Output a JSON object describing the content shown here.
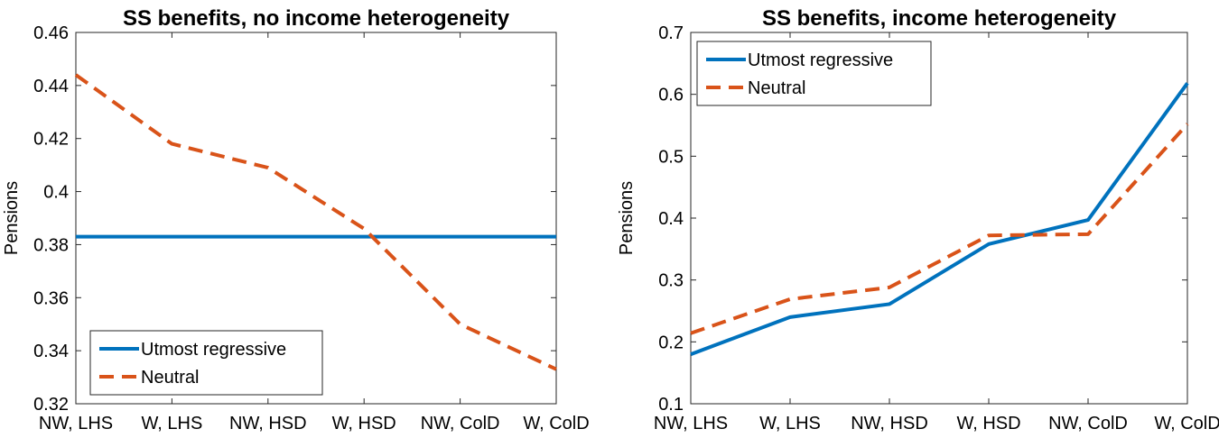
{
  "chart_data": [
    {
      "type": "line",
      "title": "SS benefits, no income heterogeneity",
      "xlabel": "",
      "ylabel": "Pensions",
      "categories": [
        "NW, LHS",
        "W, LHS",
        "NW, HSD",
        "W, HSD",
        "NW, ColD",
        "W, ColD"
      ],
      "ylim": [
        0.32,
        0.46
      ],
      "yticks": [
        0.32,
        0.34,
        0.36,
        0.38,
        0.4,
        0.42,
        0.44,
        0.46
      ],
      "ytick_labels": [
        "0.32",
        "0.34",
        "0.36",
        "0.38",
        "0.4",
        "0.42",
        "0.44",
        "0.46"
      ],
      "grid": false,
      "legend_position": "bottom-left",
      "series": [
        {
          "name": "Utmost regressive",
          "style": "solid",
          "color": "#0072BD",
          "values": [
            0.383,
            0.383,
            0.383,
            0.383,
            0.383,
            0.383
          ]
        },
        {
          "name": "Neutral",
          "style": "dashed",
          "color": "#D95319",
          "values": [
            0.444,
            0.418,
            0.409,
            0.386,
            0.35,
            0.333
          ]
        }
      ]
    },
    {
      "type": "line",
      "title": "SS benefits, income heterogeneity",
      "xlabel": "",
      "ylabel": "Pensions",
      "categories": [
        "NW, LHS",
        "W, LHS",
        "NW, HSD",
        "W, HSD",
        "NW, ColD",
        "W, ColD"
      ],
      "ylim": [
        0.1,
        0.7
      ],
      "yticks": [
        0.1,
        0.2,
        0.3,
        0.4,
        0.5,
        0.6,
        0.7
      ],
      "ytick_labels": [
        "0.1",
        "0.2",
        "0.3",
        "0.4",
        "0.5",
        "0.6",
        "0.7"
      ],
      "grid": false,
      "legend_position": "top-left",
      "series": [
        {
          "name": "Utmost regressive",
          "style": "solid",
          "color": "#0072BD",
          "values": [
            0.18,
            0.24,
            0.261,
            0.358,
            0.397,
            0.618
          ]
        },
        {
          "name": "Neutral",
          "style": "dashed",
          "color": "#D95319",
          "values": [
            0.214,
            0.269,
            0.288,
            0.372,
            0.374,
            0.552
          ]
        }
      ]
    }
  ]
}
